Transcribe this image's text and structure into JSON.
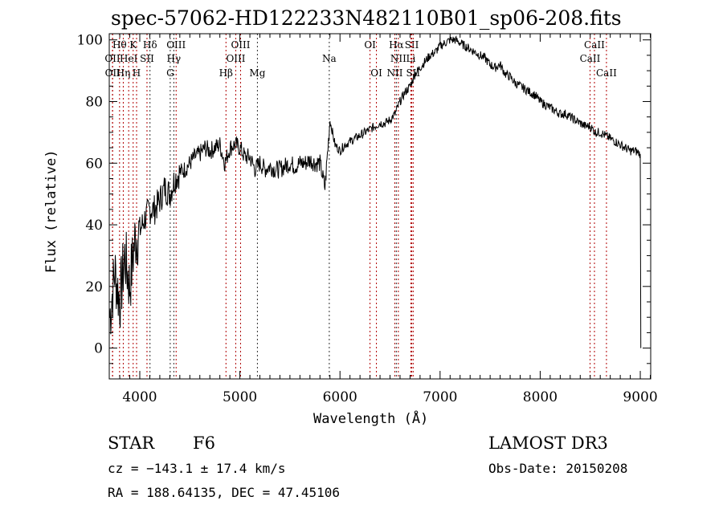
{
  "chart_data": {
    "type": "line",
    "title": "spec-57062-HD122233N482110B01_sp06-208.fits",
    "xlabel": "Wavelength (Å)",
    "ylabel": "Flux (relative)",
    "xlim": [
      3695,
      9104
    ],
    "ylim": [
      -10,
      102
    ],
    "xticks": [
      4000,
      5000,
      6000,
      7000,
      8000,
      9000
    ],
    "yticks": [
      0,
      20,
      40,
      60,
      80,
      100
    ],
    "grid": false,
    "series": [
      {
        "name": "spectrum",
        "x_start": 3700,
        "x_step": 50,
        "values": [
          10,
          25,
          15,
          30,
          20,
          35,
          38,
          42,
          45,
          45,
          48,
          52,
          50,
          55,
          57,
          58,
          60,
          62,
          63,
          65,
          64,
          65,
          66,
          60,
          65,
          66,
          65,
          62,
          62,
          58,
          60,
          58,
          59,
          58,
          58,
          59,
          60,
          59,
          60,
          60,
          61,
          60,
          60,
          52,
          74,
          66,
          64,
          66,
          67,
          68,
          69,
          70,
          71,
          72,
          73,
          73,
          74,
          76,
          80,
          83,
          85,
          89,
          91,
          93,
          95,
          96,
          98,
          99,
          100,
          100,
          99,
          98,
          97,
          96,
          95,
          94,
          92,
          91,
          92,
          89,
          88,
          86,
          85,
          84,
          83,
          82,
          80,
          79,
          78,
          77,
          76,
          76,
          75,
          74,
          73,
          72,
          72,
          70,
          70,
          69,
          68,
          67,
          66,
          65,
          64,
          64,
          63
        ]
      }
    ],
    "lines": [
      {
        "label": "Hθ",
        "wave": 3798,
        "row": 0,
        "color": "#b00000"
      },
      {
        "label": "K",
        "wave": 3934,
        "row": 0,
        "color": "#b00000"
      },
      {
        "label": "Hδ",
        "wave": 4102,
        "row": 0,
        "color": "#333333"
      },
      {
        "label": "OIII",
        "wave": 4363,
        "row": 0,
        "color": "#b00000"
      },
      {
        "label": "OIII",
        "wave": 5007,
        "row": 0,
        "color": "#b00000"
      },
      {
        "label": "OI",
        "wave": 6300,
        "row": 0,
        "color": "#b00000"
      },
      {
        "label": "Hα",
        "wave": 6563,
        "row": 0,
        "color": "#333333"
      },
      {
        "label": "SII",
        "wave": 6717,
        "row": 0,
        "color": "#b00000"
      },
      {
        "label": "CaII",
        "wave": 8542,
        "row": 0,
        "color": "#b00000"
      },
      {
        "label": "OII",
        "wave": 3727,
        "row": 1,
        "color": "#b00000"
      },
      {
        "label": "HeI",
        "wave": 3889,
        "row": 1,
        "color": "#b00000"
      },
      {
        "label": "SII",
        "wave": 4072,
        "row": 1,
        "color": "#b00000"
      },
      {
        "label": "Hγ",
        "wave": 4340,
        "row": 1,
        "color": "#333333"
      },
      {
        "label": "OIII",
        "wave": 4959,
        "row": 1,
        "color": "#b00000"
      },
      {
        "label": "Na",
        "wave": 5893,
        "row": 1,
        "color": "#333333"
      },
      {
        "label": "NII",
        "wave": 6583,
        "row": 1,
        "color": "#b00000"
      },
      {
        "label": "Li",
        "wave": 6708,
        "row": 1,
        "color": "#b00000"
      },
      {
        "label": "CaII",
        "wave": 8498,
        "row": 1,
        "color": "#b00000"
      },
      {
        "label": "OII",
        "wave": 3729,
        "row": 2,
        "color": "#b00000"
      },
      {
        "label": "Hη",
        "wave": 3835,
        "row": 2,
        "color": "#b00000"
      },
      {
        "label": "H",
        "wave": 3968,
        "row": 2,
        "color": "#b00000"
      },
      {
        "label": "G",
        "wave": 4304,
        "row": 2,
        "color": "#333333"
      },
      {
        "label": "Hβ",
        "wave": 4861,
        "row": 2,
        "color": "#b00000"
      },
      {
        "label": "Mg",
        "wave": 5175,
        "row": 2,
        "color": "#333333"
      },
      {
        "label": "OI",
        "wave": 6364,
        "row": 2,
        "color": "#b00000"
      },
      {
        "label": "NII",
        "wave": 6548,
        "row": 2,
        "color": "#b00000"
      },
      {
        "label": "SII",
        "wave": 6731,
        "row": 2,
        "color": "#b00000"
      },
      {
        "label": "CaII",
        "wave": 8662,
        "row": 2,
        "color": "#b00000"
      }
    ]
  },
  "info": {
    "class": "STAR",
    "subclass": "F6",
    "survey": "LAMOST DR3",
    "cz": "cz = −143.1 ± 17.4 km/s",
    "obs_date": "Obs-Date: 20150208",
    "radec": "RA = 188.64135, DEC =  47.45106"
  }
}
